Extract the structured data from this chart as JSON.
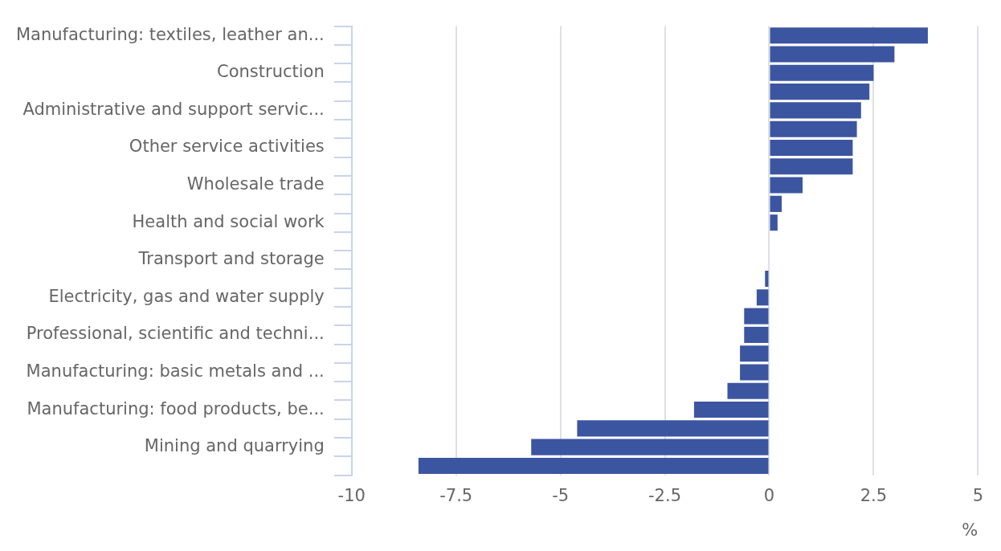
{
  "chart_data": {
    "type": "bar",
    "orientation": "horizontal",
    "xlabel": "%",
    "categories": [
      "Manufacturing: textiles, leather an...",
      null,
      "Construction",
      null,
      "Administrative and support servic...",
      null,
      "Other service activities",
      null,
      "Wholesale trade",
      null,
      "Health and social work",
      null,
      "Transport and storage",
      null,
      "Electricity, gas and water supply",
      null,
      "Professional, scientific and techni...",
      null,
      "Manufacturing: basic metals and ...",
      null,
      "Manufacturing: food products, be...",
      null,
      "Mining and quarrying",
      null
    ],
    "values": [
      3.8,
      3.0,
      2.5,
      2.4,
      2.2,
      2.1,
      2.0,
      2.0,
      0.8,
      0.3,
      0.2,
      0,
      0,
      -0.1,
      -0.3,
      -0.6,
      -0.6,
      -0.7,
      -0.7,
      -1.0,
      -1.8,
      -4.6,
      -5.7,
      -8.4
    ],
    "color": "#3b55a0",
    "xlim": [
      -10,
      5
    ],
    "xticks": [
      -10,
      -7.5,
      -5,
      -2.5,
      0,
      2.5,
      5
    ],
    "grid": "x",
    "legend": false
  }
}
